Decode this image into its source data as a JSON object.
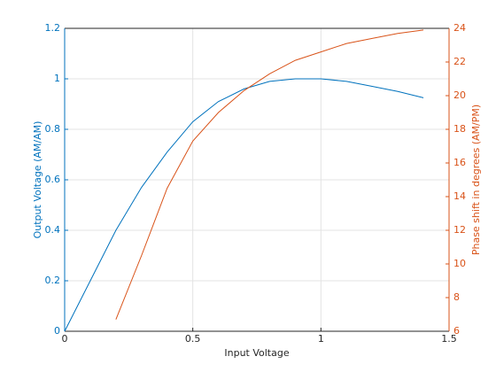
{
  "chart_data": {
    "type": "line",
    "x_label": "Input Voltage",
    "y_label": "Output Voltage (AM/AM)",
    "y2_label": "Phase shift in degrees (AM/PM)",
    "xlim": [
      0,
      1.5
    ],
    "xticks": [
      0,
      0.5,
      1,
      1.5
    ],
    "ylim": [
      0,
      1.2
    ],
    "yticks": [
      0,
      0.2,
      0.4,
      0.6,
      0.8,
      1,
      1.2
    ],
    "y2lim": [
      6,
      24
    ],
    "y2ticks": [
      6,
      8,
      10,
      12,
      14,
      16,
      18,
      20,
      22,
      24
    ],
    "grid": true,
    "y_color": "#0072bd",
    "y2_color": "#d95319",
    "series": [
      {
        "color": "#0072bd",
        "x": [
          0,
          0.1,
          0.2,
          0.3,
          0.4,
          0.5,
          0.6,
          0.7,
          0.8,
          0.9,
          1.0,
          1.1,
          1.2,
          1.3,
          1.4
        ],
        "values": [
          0,
          0.2,
          0.4,
          0.57,
          0.71,
          0.83,
          0.91,
          0.96,
          0.99,
          1.0,
          1.0,
          0.99,
          0.97,
          0.95,
          0.925
        ]
      },
      {
        "color": "#d95319",
        "axis": "y2",
        "x": [
          0.2,
          0.3,
          0.4,
          0.5,
          0.6,
          0.7,
          0.8,
          0.9,
          1.0,
          1.1,
          1.2,
          1.3,
          1.4
        ],
        "values": [
          6.7,
          10.5,
          14.5,
          17.3,
          19.0,
          20.3,
          21.3,
          22.1,
          22.6,
          23.1,
          23.4,
          23.7,
          23.9
        ]
      }
    ]
  }
}
